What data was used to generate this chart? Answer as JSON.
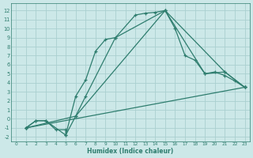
{
  "xlabel": "Humidex (Indice chaleur)",
  "bg_color": "#cce8e8",
  "grid_color": "#aad0d0",
  "line_color": "#2e7d6e",
  "xlim": [
    -0.5,
    23.5
  ],
  "ylim": [
    -2.5,
    12.8
  ],
  "xticks": [
    0,
    1,
    2,
    3,
    4,
    5,
    6,
    7,
    8,
    9,
    10,
    11,
    12,
    13,
    14,
    15,
    16,
    17,
    18,
    19,
    20,
    21,
    22,
    23
  ],
  "yticks": [
    -2,
    -1,
    0,
    1,
    2,
    3,
    4,
    5,
    6,
    7,
    8,
    9,
    10,
    11,
    12
  ],
  "line1_x": [
    1,
    2,
    3,
    4,
    5,
    5,
    6,
    7,
    8,
    9,
    10,
    12,
    13,
    14,
    15,
    16,
    17,
    18,
    19,
    20,
    21,
    22,
    23
  ],
  "line1_y": [
    -1,
    -0.2,
    -0.2,
    -1.2,
    -1.2,
    -1.8,
    2.5,
    4.3,
    7.5,
    8.8,
    9.0,
    11.5,
    11.7,
    11.8,
    12.0,
    10.0,
    7.0,
    6.5,
    5.0,
    5.2,
    4.8,
    4.2,
    3.5
  ],
  "line2_x": [
    1,
    2,
    3,
    5,
    6,
    7,
    10,
    15,
    19,
    21,
    23
  ],
  "line2_y": [
    -1.0,
    -0.2,
    -0.2,
    -1.8,
    0.3,
    2.5,
    9.0,
    12.0,
    5.0,
    5.2,
    3.5
  ],
  "line3_x": [
    1,
    6,
    15,
    21,
    23
  ],
  "line3_y": [
    -1.0,
    0.3,
    12.0,
    5.2,
    3.5
  ],
  "line4_x": [
    1,
    23
  ],
  "line4_y": [
    -1.0,
    3.5
  ]
}
